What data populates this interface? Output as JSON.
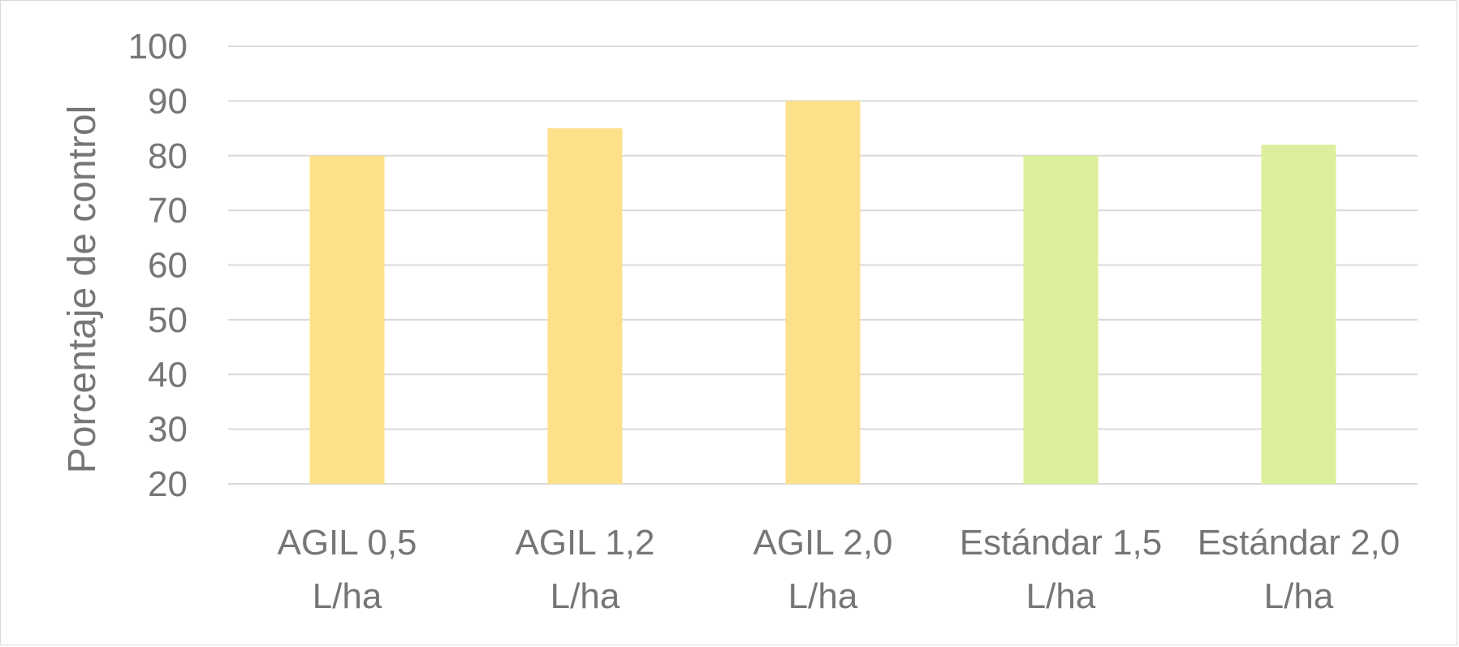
{
  "chart_data": {
    "type": "bar",
    "title": "",
    "xlabel": "",
    "ylabel": "Porcentaje de control",
    "ylim": [
      20,
      100
    ],
    "yticks": [
      20,
      30,
      40,
      50,
      60,
      70,
      80,
      90,
      100
    ],
    "grid": true,
    "legend": "none",
    "categories": [
      {
        "line1": "AGIL 0,5",
        "line2": "L/ha"
      },
      {
        "line1": "AGIL 1,2",
        "line2": "L/ha"
      },
      {
        "line1": "AGIL 2,0",
        "line2": "L/ha"
      },
      {
        "line1": "Estándar 1,5",
        "line2": "L/ha"
      },
      {
        "line1": "Estándar 2,0",
        "line2": "L/ha"
      }
    ],
    "values": [
      80,
      85,
      90,
      80,
      82
    ],
    "bar_colors": [
      "#ffe08a",
      "#ffe08a",
      "#ffe08a",
      "#dcef9c",
      "#dcef9c"
    ]
  }
}
